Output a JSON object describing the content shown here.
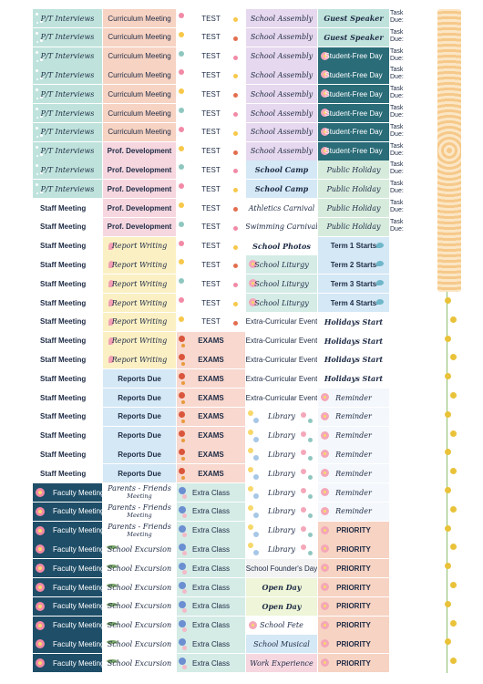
{
  "columns": [
    {
      "id": "c1",
      "labels": [
        "P/T Interviews",
        "P/T Interviews",
        "P/T Interviews",
        "P/T Interviews",
        "P/T Interviews",
        "P/T Interviews",
        "P/T Interviews",
        "P/T Interviews",
        "P/T Interviews",
        "P/T Interviews",
        "Staff Meeting",
        "Staff Meeting",
        "Staff Meeting",
        "Staff Meeting",
        "Staff Meeting",
        "Staff Meeting",
        "Staff Meeting",
        "Staff Meeting",
        "Staff Meeting",
        "Staff Meeting",
        "Staff Meeting",
        "Staff Meeting",
        "Staff Meeting",
        "Staff Meeting",
        "Staff Meeting",
        "Faculty Meeting",
        "Faculty Meeting",
        "Faculty Meeting",
        "Faculty Meeting",
        "Faculty Meeting",
        "Faculty Meeting",
        "Faculty Meeting",
        "Faculty Meeting",
        "Faculty Meeting",
        "Faculty Meeting"
      ]
    },
    {
      "id": "c2",
      "labels": [
        "Curriculum Meeting",
        "Curriculum Meeting",
        "Curriculum Meeting",
        "Curriculum Meeting",
        "Curriculum Meeting",
        "Curriculum Meeting",
        "Curriculum Meeting",
        "Prof. Development",
        "Prof. Development",
        "Prof. Development",
        "Prof. Development",
        "Prof. Development",
        "Report Writing",
        "Report Writing",
        "Report Writing",
        "Report Writing",
        "Report Writing",
        "Report Writing",
        "Report Writing",
        "Reports Due",
        "Reports Due",
        "Reports Due",
        "Reports Due",
        "Reports Due",
        "Reports Due",
        "Parents - Friends",
        "Parents - Friends",
        "Parents - Friends",
        "School Excursion",
        "School Excursion",
        "School Excursion",
        "School Excursion",
        "School Excursion",
        "School Excursion",
        "School Excursion"
      ],
      "sub": "Meeting"
    },
    {
      "id": "c3",
      "labels": [
        "TEST",
        "TEST",
        "TEST",
        "TEST",
        "TEST",
        "TEST",
        "TEST",
        "TEST",
        "TEST",
        "TEST",
        "TEST",
        "TEST",
        "TEST",
        "TEST",
        "TEST",
        "TEST",
        "TEST",
        "EXAMS",
        "EXAMS",
        "EXAMS",
        "EXAMS",
        "EXAMS",
        "EXAMS",
        "EXAMS",
        "EXAMS",
        "Extra Class",
        "Extra Class",
        "Extra Class",
        "Extra Class",
        "Extra Class",
        "Extra Class",
        "Extra Class",
        "Extra Class",
        "Extra Class",
        "Extra Class"
      ]
    },
    {
      "id": "c4",
      "labels": [
        "School Assembly",
        "School Assembly",
        "School Assembly",
        "School Assembly",
        "School Assembly",
        "School Assembly",
        "School Assembly",
        "School Assembly",
        "School Camp",
        "School Camp",
        "Athletics Carnival",
        "Swimming Carnival",
        "School Photos",
        "School Liturgy",
        "School Liturgy",
        "School Liturgy",
        "Extra-Curricular Event",
        "Extra-Curricular Event",
        "Extra-Curricular Event",
        "Extra-Curricular Event",
        "Extra-Curricular Event",
        "Library",
        "Library",
        "Library",
        "Library",
        "Library",
        "Library",
        "Library",
        "Library",
        "School Founder's Day",
        "Open Day",
        "Open Day",
        "School Fete",
        "School Musical",
        "Work Experience"
      ]
    },
    {
      "id": "c5",
      "labels": [
        "Guest Speaker",
        "Guest Speaker",
        "Student-Free Day",
        "Student-Free Day",
        "Student-Free Day",
        "Student-Free Day",
        "Student-Free Day",
        "Student-Free Day",
        "Public Holiday",
        "Public Holiday",
        "Public Holiday",
        "Public Holiday",
        "Term 1 Starts",
        "Term 2 Starts",
        "Term 3 Starts",
        "Term 4 Starts",
        "Holidays Start",
        "Holidays Start",
        "Holidays Start",
        "Holidays Start",
        "Reminder",
        "Reminder",
        "Reminder",
        "Reminder",
        "Reminder",
        "Reminder",
        "Reminder",
        "PRIORITY",
        "PRIORITY",
        "PRIORITY",
        "PRIORITY",
        "PRIORITY",
        "PRIORITY",
        "PRIORITY",
        "PRIORITY"
      ]
    }
  ],
  "task_due": {
    "line1": "Task",
    "line2": "Due:",
    "count": 12
  },
  "colors": {
    "ink": "#1d2a44",
    "mint": "#bfe3dc",
    "peach": "#f7d3c3",
    "lavender": "#e6d8ee",
    "pink": "#f6d7e0",
    "butter": "#fbf0c4",
    "sky": "#d4e8f6",
    "navy": "#1f4e68",
    "teal": "#2a6c78",
    "sage": "#d7ebdd",
    "flower_yellow": "#e9c23a"
  }
}
